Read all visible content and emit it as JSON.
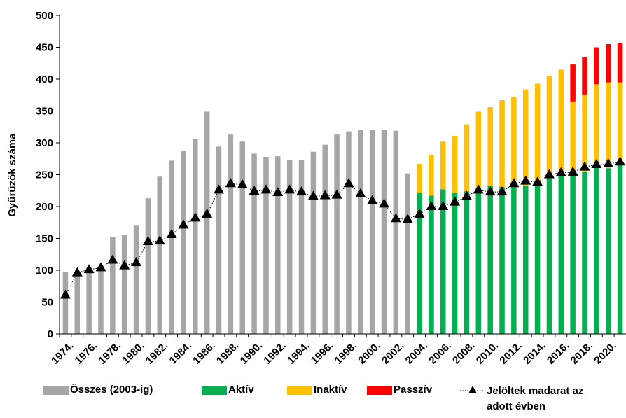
{
  "chart_data": {
    "type": "bar",
    "y_label": "Gyűrűzők száma",
    "categories": [
      "1974.",
      null,
      "1976.",
      null,
      "1978.",
      null,
      "1980.",
      null,
      "1982.",
      null,
      "1984.",
      null,
      "1986.",
      null,
      "1988.",
      null,
      "1990.",
      null,
      "1992.",
      null,
      "1994.",
      null,
      "1996.",
      null,
      "1998.",
      null,
      "2000.",
      null,
      "2002.",
      null,
      "2004.",
      null,
      "2006.",
      null,
      "2008.",
      null,
      "2010.",
      null,
      "2012.",
      null,
      "2014.",
      null,
      "2016.",
      null,
      "2018.",
      null,
      "2020.",
      null
    ],
    "series": [
      {
        "name": "Összes (2003-ig)",
        "type": "bar",
        "color": "#a6a6a6",
        "values": [
          97,
          95,
          100,
          103,
          152,
          155,
          170,
          213,
          247,
          272,
          288,
          306,
          349,
          294,
          313,
          302,
          283,
          278,
          279,
          273,
          273,
          286,
          297,
          313,
          318,
          320,
          320,
          320,
          319,
          252,
          null,
          null,
          null,
          null,
          null,
          null,
          null,
          null,
          null,
          null,
          null,
          null,
          null,
          null,
          null,
          null,
          null,
          null
        ]
      },
      {
        "name": "Aktív",
        "type": "bar",
        "color": "#00b050",
        "values": [
          null,
          null,
          null,
          null,
          null,
          null,
          null,
          null,
          null,
          null,
          null,
          null,
          null,
          null,
          null,
          null,
          null,
          null,
          null,
          null,
          null,
          null,
          null,
          null,
          null,
          null,
          null,
          null,
          null,
          null,
          221,
          217,
          227,
          221,
          224,
          230,
          232,
          231,
          236,
          233,
          236,
          248,
          248,
          250,
          255,
          262,
          260,
          265
        ]
      },
      {
        "name": "Inaktív",
        "type": "bar",
        "color": "#ffc000",
        "values": [
          null,
          null,
          null,
          null,
          null,
          null,
          null,
          null,
          null,
          null,
          null,
          null,
          null,
          null,
          null,
          null,
          null,
          null,
          null,
          null,
          null,
          null,
          null,
          null,
          null,
          null,
          null,
          null,
          null,
          null,
          46,
          64,
          75,
          90,
          105,
          119,
          124,
          136,
          136,
          151,
          157,
          157,
          167,
          115,
          121,
          130,
          135,
          130
        ]
      },
      {
        "name": "Passzív",
        "type": "bar",
        "color": "#ff0000",
        "values": [
          null,
          null,
          null,
          null,
          null,
          null,
          null,
          null,
          null,
          null,
          null,
          null,
          null,
          null,
          null,
          null,
          null,
          null,
          null,
          null,
          null,
          null,
          null,
          null,
          null,
          null,
          null,
          null,
          null,
          null,
          null,
          null,
          null,
          null,
          null,
          null,
          null,
          null,
          null,
          null,
          null,
          null,
          null,
          58,
          58,
          58,
          60,
          62
        ]
      },
      {
        "name": "Jelöltek madarat az adott évben",
        "type": "line",
        "color": "#000000",
        "values": [
          61,
          96,
          101,
          104,
          116,
          107,
          112,
          145,
          146,
          156,
          171,
          182,
          188,
          226,
          236,
          234,
          224,
          226,
          222,
          226,
          223,
          216,
          217,
          218,
          236,
          220,
          209,
          204,
          181,
          180,
          188,
          200,
          200,
          207,
          216,
          226,
          223,
          223,
          236,
          240,
          238,
          250,
          253,
          254,
          262,
          266,
          267,
          270
        ]
      }
    ],
    "ylim": [
      0,
      500
    ],
    "yticks": [
      0,
      50,
      100,
      150,
      200,
      250,
      300,
      350,
      400,
      450,
      500
    ],
    "grid": false
  }
}
